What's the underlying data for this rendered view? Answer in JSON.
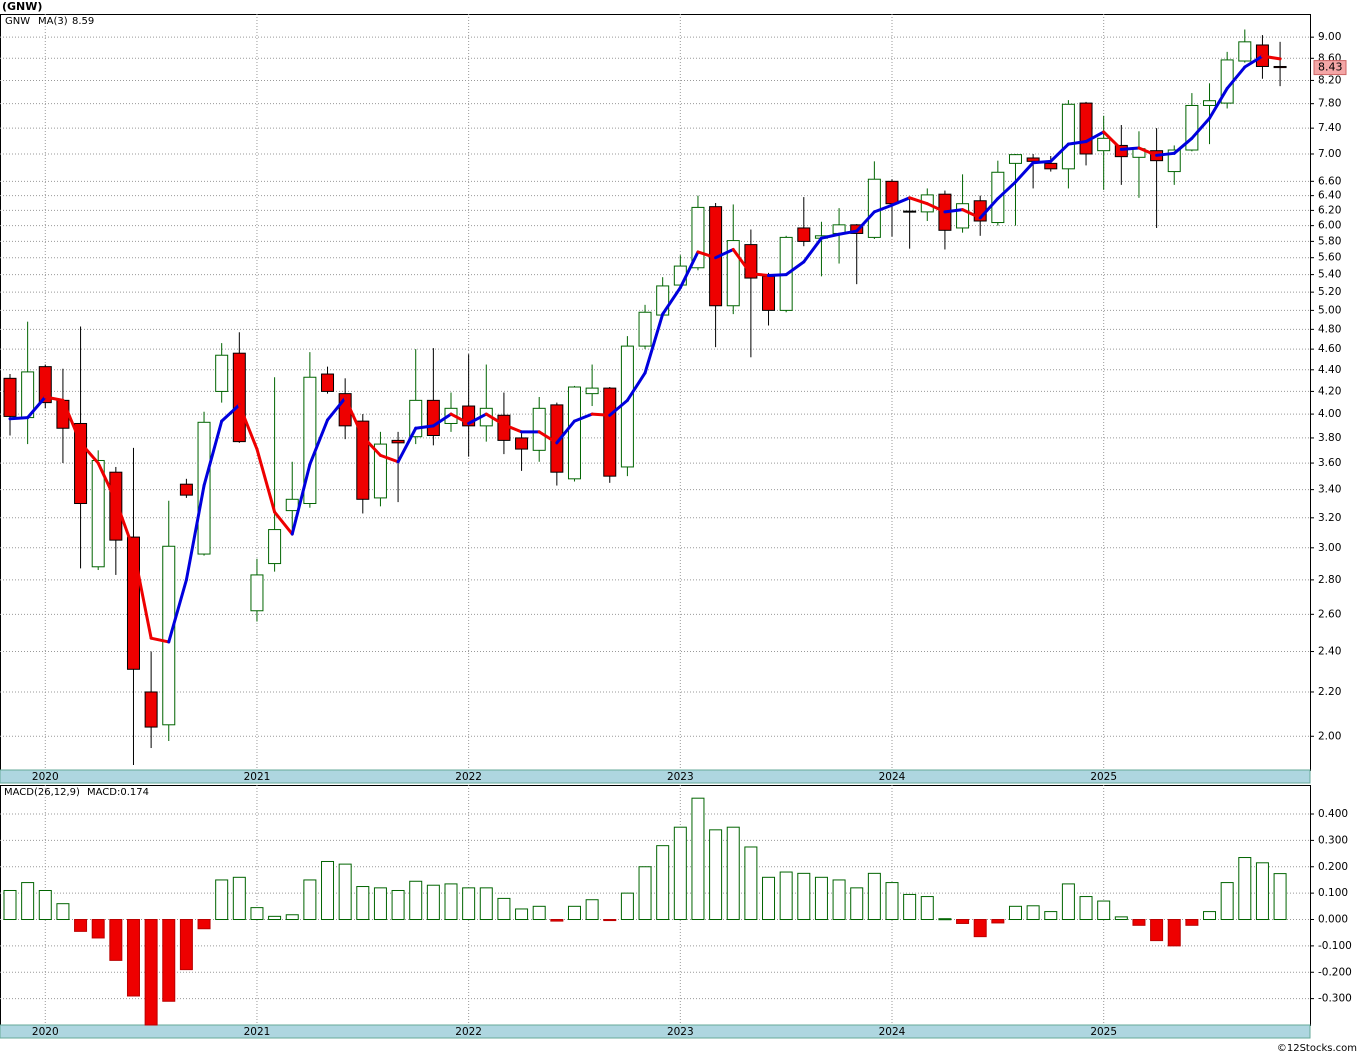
{
  "title": "(GNW)",
  "footer": "©12Stocks.com",
  "chart_data": [
    {
      "type": "candlestick",
      "legend": "GNW",
      "ma_name": "MA(3)",
      "ma_last": 8.59,
      "categories": [
        null,
        null,
        "2020",
        null,
        null,
        null,
        null,
        null,
        null,
        null,
        null,
        null,
        null,
        null,
        "2021",
        null,
        null,
        null,
        null,
        null,
        null,
        null,
        null,
        null,
        null,
        null,
        "2022",
        null,
        null,
        null,
        null,
        null,
        null,
        null,
        null,
        null,
        null,
        null,
        "2023",
        null,
        null,
        null,
        null,
        null,
        null,
        null,
        null,
        null,
        null,
        null,
        "2024",
        null,
        null,
        null,
        null,
        null,
        null,
        null,
        null,
        null,
        null,
        null,
        "2025",
        null,
        null,
        null,
        null,
        null,
        null,
        null,
        null,
        null,
        null
      ],
      "open": [
        4.32,
        3.97,
        4.43,
        4.12,
        3.92,
        2.88,
        3.53,
        3.07,
        2.2,
        2.05,
        3.44,
        2.96,
        4.2,
        4.56,
        2.62,
        2.9,
        3.25,
        3.3,
        4.36,
        4.18,
        3.94,
        3.34,
        3.78,
        3.81,
        4.12,
        3.92,
        4.07,
        3.9,
        3.99,
        3.8,
        3.7,
        4.08,
        3.48,
        4.18,
        4.23,
        3.57,
        4.63,
        4.95,
        5.28,
        5.48,
        6.25,
        5.05,
        5.76,
        5.38,
        5.0,
        5.97,
        5.84,
        5.9,
        6.01,
        5.85,
        6.6,
        6.19,
        6.18,
        6.42,
        5.97,
        6.33,
        6.04,
        6.86,
        6.94,
        6.86,
        6.78,
        7.81,
        7.05,
        7.13,
        6.95,
        7.05,
        6.74,
        7.06,
        7.77,
        7.81,
        8.55,
        8.85,
        8.45
      ],
      "high": [
        4.36,
        4.88,
        4.45,
        4.41,
        4.83,
        3.7,
        3.57,
        3.72,
        2.4,
        3.32,
        3.48,
        4.02,
        4.66,
        4.77,
        2.93,
        4.33,
        3.61,
        4.57,
        4.43,
        4.32,
        4.0,
        3.85,
        3.85,
        4.6,
        4.61,
        4.19,
        4.55,
        4.45,
        4.19,
        3.85,
        4.15,
        4.1,
        4.25,
        4.45,
        4.24,
        4.73,
        5.06,
        5.37,
        5.63,
        6.4,
        6.3,
        6.28,
        5.95,
        5.42,
        5.87,
        6.38,
        6.05,
        6.23,
        6.02,
        6.89,
        6.63,
        6.35,
        6.5,
        6.47,
        6.7,
        6.4,
        6.9,
        7.0,
        7.0,
        6.97,
        7.86,
        7.83,
        7.6,
        7.45,
        7.35,
        7.4,
        7.13,
        7.98,
        8.15,
        8.72,
        9.15,
        9.04,
        8.91
      ],
      "low": [
        3.82,
        3.75,
        4.05,
        3.6,
        2.87,
        2.86,
        2.83,
        1.88,
        1.95,
        1.98,
        3.34,
        2.95,
        4.1,
        3.76,
        2.56,
        2.85,
        3.08,
        3.27,
        4.18,
        3.79,
        3.23,
        3.28,
        3.31,
        3.75,
        3.74,
        3.85,
        3.65,
        3.77,
        3.67,
        3.54,
        3.61,
        3.43,
        3.46,
        4.07,
        3.45,
        3.5,
        4.6,
        4.93,
        5.26,
        5.45,
        4.62,
        4.96,
        4.52,
        4.84,
        4.98,
        5.74,
        5.38,
        5.53,
        5.29,
        5.83,
        5.86,
        5.71,
        6.06,
        5.7,
        5.91,
        5.87,
        6.0,
        6.0,
        6.5,
        6.74,
        6.5,
        6.83,
        6.48,
        6.55,
        6.37,
        5.97,
        6.55,
        7.04,
        7.15,
        7.72,
        8.52,
        8.23,
        8.1
      ],
      "close": [
        3.98,
        4.38,
        4.1,
        3.88,
        3.3,
        3.62,
        3.05,
        2.31,
        2.04,
        3.01,
        3.36,
        3.93,
        4.54,
        3.77,
        2.83,
        3.12,
        3.33,
        4.33,
        4.2,
        3.9,
        3.33,
        3.75,
        3.76,
        4.12,
        3.82,
        4.05,
        3.9,
        4.05,
        3.78,
        3.71,
        4.05,
        3.53,
        4.24,
        4.23,
        3.5,
        4.63,
        4.98,
        5.27,
        5.5,
        6.24,
        5.05,
        5.81,
        5.36,
        5.0,
        5.85,
        5.8,
        5.87,
        6.01,
        5.9,
        6.63,
        6.29,
        6.18,
        6.41,
        5.94,
        6.29,
        6.06,
        6.73,
        6.99,
        6.89,
        6.78,
        7.79,
        7.0,
        7.24,
        6.96,
        7.08,
        6.9,
        7.06,
        7.77,
        7.85,
        8.57,
        8.91,
        8.45,
        8.43
      ],
      "ma": [
        3.96,
        3.97,
        4.15,
        4.12,
        3.76,
        3.6,
        3.32,
        2.99,
        2.47,
        2.45,
        2.8,
        3.43,
        3.94,
        4.08,
        3.71,
        3.24,
        3.09,
        3.59,
        3.95,
        4.14,
        3.81,
        3.66,
        3.61,
        3.88,
        3.9,
        4.0,
        3.92,
        4.0,
        3.91,
        3.85,
        3.85,
        3.76,
        3.94,
        4.0,
        3.99,
        4.12,
        4.37,
        4.96,
        5.25,
        5.67,
        5.6,
        5.7,
        5.41,
        5.39,
        5.4,
        5.55,
        5.84,
        5.89,
        5.93,
        6.18,
        6.27,
        6.37,
        6.29,
        6.18,
        6.21,
        6.1,
        6.36,
        6.59,
        6.87,
        6.89,
        7.15,
        7.19,
        7.34,
        7.07,
        7.09,
        6.98,
        7.01,
        7.24,
        7.56,
        8.06,
        8.44,
        8.64,
        8.59
      ],
      "up_color": "#006400",
      "down_color": "#ee0000",
      "ma_up_color": "#0000dd",
      "ma_down_color": "#ee0000",
      "log_scale": true,
      "grid": true,
      "ylim": [
        1.86,
        9.46
      ],
      "yticks": [
        {
          "value": 2,
          "label": "2.00"
        },
        {
          "value": 2.2,
          "label": "2.20"
        },
        {
          "value": 2.4,
          "label": "2.40"
        },
        {
          "value": 2.6,
          "label": "2.60"
        },
        {
          "value": 2.8,
          "label": "2.80"
        },
        {
          "value": 3,
          "label": "3.00"
        },
        {
          "value": 3.2,
          "label": "3.20"
        },
        {
          "value": 3.4,
          "label": "3.40"
        },
        {
          "value": 3.6,
          "label": "3.60"
        },
        {
          "value": 3.8,
          "label": "3.80"
        },
        {
          "value": 4,
          "label": "4.00"
        },
        {
          "value": 4.2,
          "label": "4.20"
        },
        {
          "value": 4.4,
          "label": "4.40"
        },
        {
          "value": 4.6,
          "label": "4.60"
        },
        {
          "value": 4.8,
          "label": "4.80"
        },
        {
          "value": 5,
          "label": "5.00"
        },
        {
          "value": 5.2,
          "label": "5.20"
        },
        {
          "value": 5.4,
          "label": "5.40"
        },
        {
          "value": 5.6,
          "label": "5.60"
        },
        {
          "value": 5.8,
          "label": "5.80"
        },
        {
          "value": 6,
          "label": "6.00"
        },
        {
          "value": 6.2,
          "label": "6.20"
        },
        {
          "value": 6.4,
          "label": "6.40"
        },
        {
          "value": 6.6,
          "label": "6.60"
        },
        {
          "value": 7,
          "label": "7.00"
        },
        {
          "value": 7.4,
          "label": "7.40"
        },
        {
          "value": 7.8,
          "label": "7.80"
        },
        {
          "value": 8.2,
          "label": "8.20"
        },
        {
          "value": 8.6,
          "label": "8.60"
        },
        {
          "value": 9,
          "label": "9.00"
        }
      ]
    },
    {
      "type": "bar",
      "name": "MACD(26,12,9)",
      "readout": "MACD:0.174",
      "categories": [
        null,
        null,
        "2020",
        null,
        null,
        null,
        null,
        null,
        null,
        null,
        null,
        null,
        null,
        null,
        "2021",
        null,
        null,
        null,
        null,
        null,
        null,
        null,
        null,
        null,
        null,
        null,
        "2022",
        null,
        null,
        null,
        null,
        null,
        null,
        null,
        null,
        null,
        null,
        null,
        "2023",
        null,
        null,
        null,
        null,
        null,
        null,
        null,
        null,
        null,
        null,
        null,
        "2024",
        null,
        null,
        null,
        null,
        null,
        null,
        null,
        null,
        null,
        null,
        null,
        "2025",
        null,
        null,
        null,
        null,
        null,
        null,
        null,
        null,
        null,
        null
      ],
      "values": [
        0.11,
        0.14,
        0.11,
        0.06,
        -0.045,
        -0.07,
        -0.155,
        -0.29,
        -0.4,
        -0.31,
        -0.19,
        -0.035,
        0.15,
        0.16,
        0.045,
        0.012,
        0.018,
        0.15,
        0.22,
        0.21,
        0.125,
        0.12,
        0.11,
        0.145,
        0.13,
        0.135,
        0.12,
        0.12,
        0.08,
        0.04,
        0.05,
        -0.006,
        0.05,
        0.075,
        -0.004,
        0.1,
        0.2,
        0.28,
        0.35,
        0.46,
        0.34,
        0.35,
        0.275,
        0.16,
        0.18,
        0.175,
        0.16,
        0.15,
        0.12,
        0.175,
        0.14,
        0.095,
        0.087,
        0.003,
        -0.015,
        -0.065,
        -0.013,
        0.05,
        0.052,
        0.03,
        0.135,
        0.087,
        0.07,
        0.01,
        -0.022,
        -0.08,
        -0.1,
        -0.022,
        0.03,
        0.14,
        0.235,
        0.215,
        0.174
      ],
      "up_color": "#006400",
      "down_color": "#ee0000",
      "grid": true,
      "ylim": [
        -0.4,
        0.51
      ],
      "yticks": [
        {
          "value": 0.4,
          "label": "0.400"
        },
        {
          "value": 0.3,
          "label": "0.300"
        },
        {
          "value": 0.2,
          "label": "0.200"
        },
        {
          "value": 0.1,
          "label": "0.100"
        },
        {
          "value": 0,
          "label": "0.000"
        },
        {
          "value": -0.1,
          "label": "-0.100"
        },
        {
          "value": -0.2,
          "label": "-0.200"
        },
        {
          "value": -0.3,
          "label": "-0.300"
        }
      ]
    }
  ]
}
